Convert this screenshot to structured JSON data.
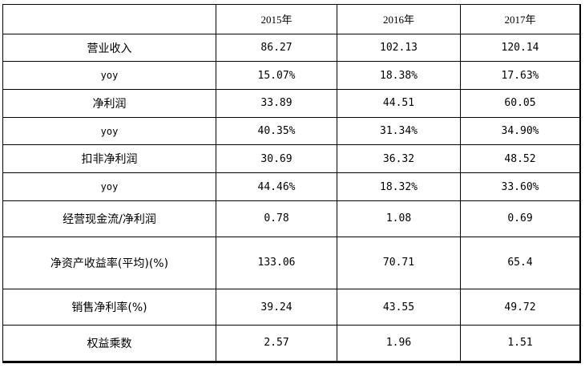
{
  "table": {
    "corner": "",
    "headers": [
      "2015年",
      "2016年",
      "2017年"
    ],
    "rows": [
      {
        "label": "营业收入",
        "values": [
          "86.27",
          "102.13",
          "120.14"
        ]
      },
      {
        "label": "yoy",
        "values": [
          "15.07%",
          "18.38%",
          "17.63%"
        ]
      },
      {
        "label": "净利润",
        "values": [
          "33.89",
          "44.51",
          "60.05"
        ]
      },
      {
        "label": "yoy",
        "values": [
          "40.35%",
          "31.34%",
          "34.90%"
        ]
      },
      {
        "label": "扣非净利润",
        "values": [
          "30.69",
          "36.32",
          "48.52"
        ]
      },
      {
        "label": "yoy",
        "values": [
          "44.46%",
          "18.32%",
          "33.60%"
        ]
      },
      {
        "label": "经营现金流/净利润",
        "values": [
          "0.78",
          "1.08",
          "0.69"
        ]
      },
      {
        "label": "净资产收益率(平均)(%)",
        "values": [
          "133.06",
          "70.71",
          "65.4"
        ]
      },
      {
        "label": "销售净利率(%)",
        "values": [
          "39.24",
          "43.55",
          "49.72"
        ]
      },
      {
        "label": "权益乘数",
        "values": [
          "2.57",
          "1.96",
          "1.51"
        ]
      }
    ]
  }
}
